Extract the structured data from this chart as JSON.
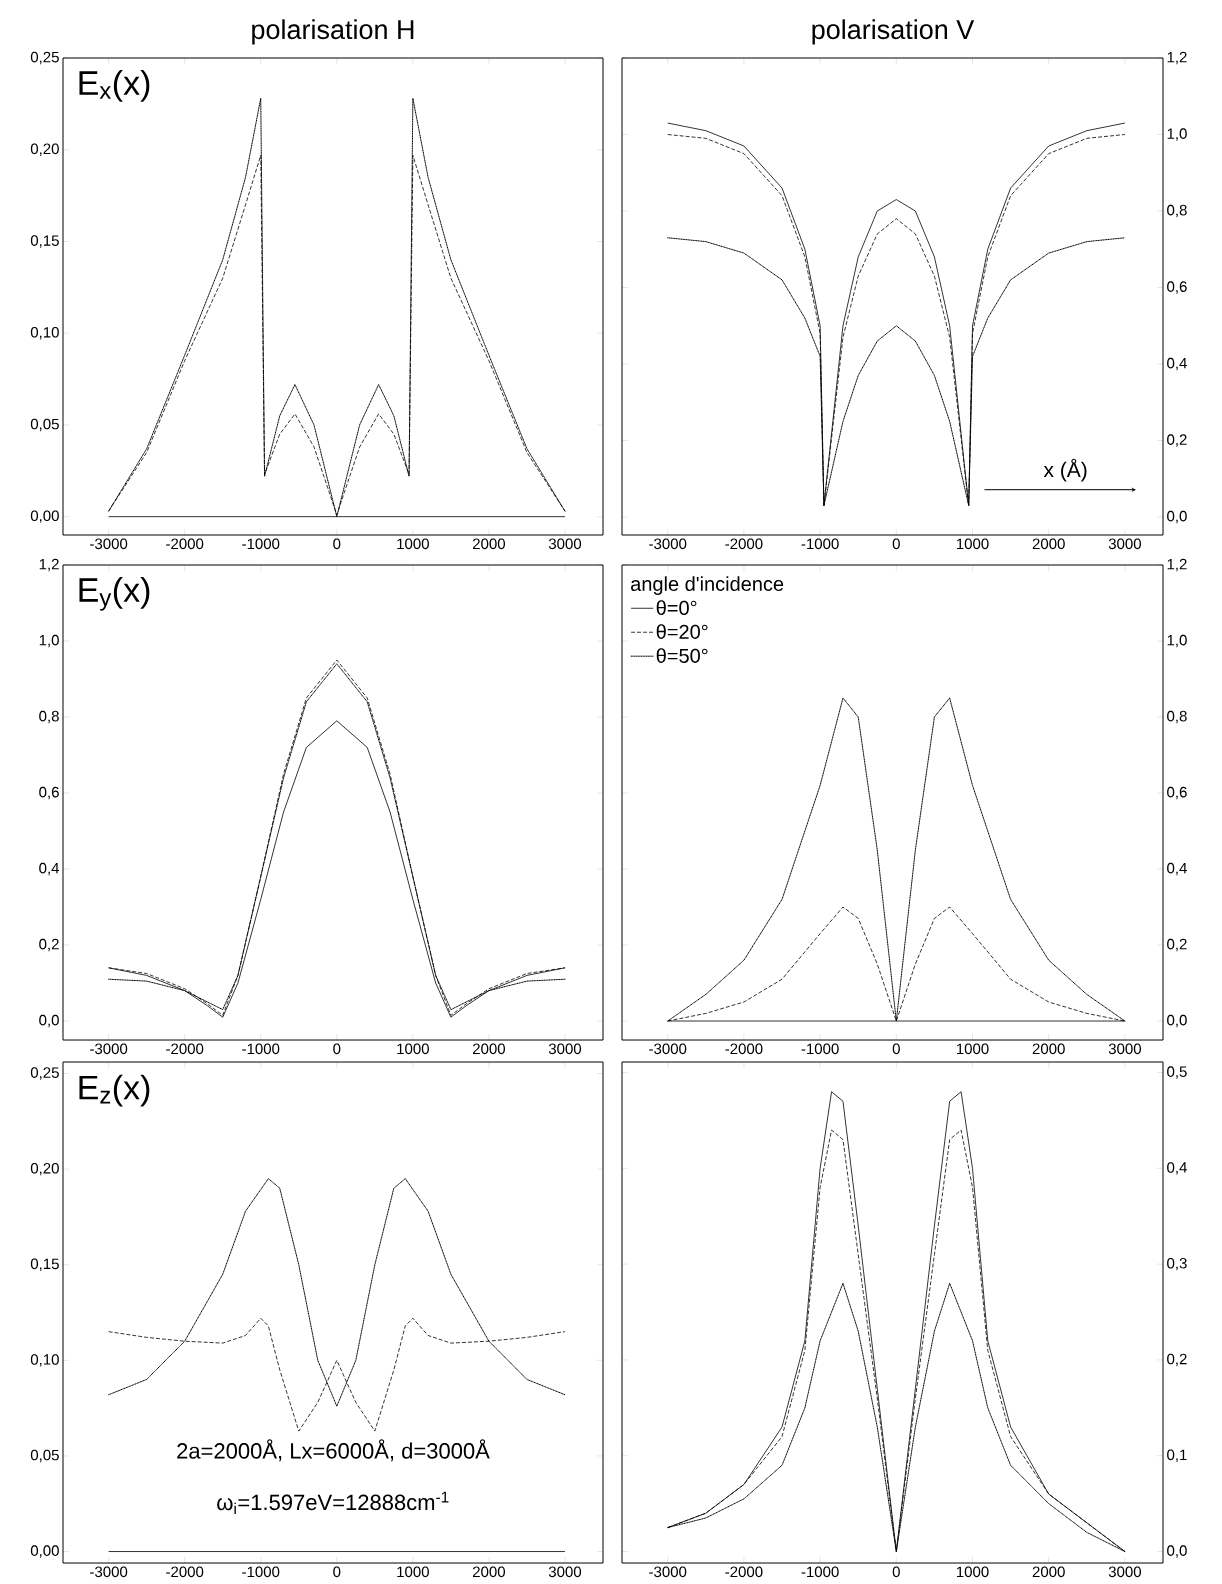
{
  "chart_data": [
    {
      "type": "line",
      "title": "polarisation H",
      "annotations": [
        "E$_{x}$(x)"
      ],
      "xlim": [
        -3600,
        3500
      ],
      "xticks": [
        -3000,
        -2000,
        -1000,
        0,
        1000,
        2000,
        3000
      ],
      "ylim": [
        -0.01,
        0.25
      ],
      "yticks": [
        {
          "value": 0,
          "label": "0,00"
        },
        {
          "value": 0.05,
          "label": "0,05"
        },
        {
          "value": 0.1,
          "label": "0,10"
        },
        {
          "value": 0.15,
          "label": "0,15"
        },
        {
          "value": 0.2,
          "label": "0,20"
        },
        {
          "value": 0.25,
          "label": "0,25"
        }
      ],
      "series": [
        {
          "color": "#000000",
          "line_style": "solid",
          "x": [
            -3000,
            3000
          ],
          "values": [
            0,
            0
          ]
        },
        {
          "color": "#000000",
          "line_style": "dashed",
          "x": [
            -3000,
            -2500,
            -2000,
            -1500,
            -1200,
            -1000,
            -950,
            -750,
            -550,
            -300,
            0,
            300,
            550,
            750,
            950,
            1000,
            1200,
            1500,
            2000,
            2500,
            3000
          ],
          "values": [
            0.003,
            0.035,
            0.085,
            0.13,
            0.17,
            0.197,
            0.023,
            0.045,
            0.056,
            0.038,
            0.001,
            0.038,
            0.056,
            0.045,
            0.023,
            0.197,
            0.17,
            0.13,
            0.085,
            0.035,
            0.003
          ]
        },
        {
          "color": "#000000",
          "line_style": "dotted",
          "x": [
            -3000,
            -2500,
            -2000,
            -1500,
            -1200,
            -1000,
            -950,
            -750,
            -550,
            -300,
            0,
            300,
            550,
            750,
            950,
            1000,
            1200,
            1500,
            2000,
            2500,
            3000
          ],
          "values": [
            0.003,
            0.037,
            0.088,
            0.14,
            0.185,
            0.228,
            0.022,
            0.055,
            0.072,
            0.05,
            0.0,
            0.05,
            0.072,
            0.055,
            0.022,
            0.228,
            0.185,
            0.14,
            0.088,
            0.037,
            0.003
          ]
        }
      ]
    },
    {
      "type": "line",
      "title": "polarisation V",
      "xlabel": "x (Å)",
      "xlim": [
        -3600,
        3500
      ],
      "xticks": [
        -3000,
        -2000,
        -1000,
        0,
        1000,
        2000,
        3000
      ],
      "y2lim": [
        -0.047,
        1.2
      ],
      "y2ticks": [
        {
          "value": 0,
          "label": "0,0"
        },
        {
          "value": 0.2,
          "label": "0,2"
        },
        {
          "value": 0.4,
          "label": "0,4"
        },
        {
          "value": 0.6,
          "label": "0,6"
        },
        {
          "value": 0.8,
          "label": "0,8"
        },
        {
          "value": 1.0,
          "label": "1,0"
        },
        {
          "value": 1.2,
          "label": "1,2"
        }
      ],
      "series": [
        {
          "color": "#000000",
          "line_style": "solid",
          "axis": "y2",
          "x": [
            -3000,
            -2500,
            -2000,
            -1500,
            -1200,
            -1000,
            -950,
            -700,
            -500,
            -250,
            0,
            250,
            500,
            700,
            950,
            1000,
            1200,
            1500,
            2000,
            2500,
            3000
          ],
          "values": [
            1.03,
            1.01,
            0.97,
            0.86,
            0.7,
            0.5,
            0.03,
            0.5,
            0.68,
            0.8,
            0.83,
            0.8,
            0.68,
            0.5,
            0.03,
            0.5,
            0.7,
            0.86,
            0.97,
            1.01,
            1.03
          ]
        },
        {
          "color": "#000000",
          "line_style": "dashed",
          "axis": "y2",
          "x": [
            -3000,
            -2500,
            -2000,
            -1500,
            -1200,
            -1000,
            -950,
            -700,
            -500,
            -250,
            0,
            250,
            500,
            700,
            950,
            1000,
            1200,
            1500,
            2000,
            2500,
            3000
          ],
          "values": [
            1.0,
            0.99,
            0.95,
            0.84,
            0.68,
            0.48,
            0.03,
            0.47,
            0.63,
            0.74,
            0.78,
            0.74,
            0.63,
            0.47,
            0.03,
            0.48,
            0.68,
            0.84,
            0.95,
            0.99,
            1.0
          ]
        },
        {
          "color": "#000000",
          "line_style": "dotted",
          "axis": "y2",
          "x": [
            -3000,
            -2500,
            -2000,
            -1500,
            -1200,
            -1000,
            -950,
            -700,
            -500,
            -250,
            0,
            250,
            500,
            700,
            950,
            1000,
            1200,
            1500,
            2000,
            2500,
            3000
          ],
          "values": [
            0.73,
            0.72,
            0.69,
            0.62,
            0.52,
            0.42,
            0.03,
            0.25,
            0.37,
            0.46,
            0.5,
            0.46,
            0.37,
            0.25,
            0.03,
            0.42,
            0.52,
            0.62,
            0.69,
            0.72,
            0.73
          ]
        }
      ]
    },
    {
      "type": "line",
      "annotations": [
        "E$_{y}$(x)"
      ],
      "xlim": [
        -3600,
        3500
      ],
      "xticks": [
        -3000,
        -2000,
        -1000,
        0,
        1000,
        2000,
        3000
      ],
      "ylim": [
        -0.05,
        1.2
      ],
      "yticks": [
        {
          "value": 0,
          "label": "0,0"
        },
        {
          "value": 0.2,
          "label": "0,2"
        },
        {
          "value": 0.4,
          "label": "0,4"
        },
        {
          "value": 0.6,
          "label": "0,6"
        },
        {
          "value": 0.8,
          "label": "0,8"
        },
        {
          "value": 1.0,
          "label": "1,0"
        },
        {
          "value": 1.2,
          "label": "1,2"
        }
      ],
      "series": [
        {
          "color": "#000000",
          "line_style": "solid",
          "x": [
            -3000,
            -2500,
            -2000,
            -1700,
            -1500,
            -1300,
            -1000,
            -700,
            -400,
            0,
            400,
            700,
            1000,
            1300,
            1500,
            1700,
            2000,
            2500,
            3000
          ],
          "values": [
            0.14,
            0.12,
            0.08,
            0.04,
            0.01,
            0.1,
            0.32,
            0.55,
            0.72,
            0.79,
            0.72,
            0.55,
            0.32,
            0.1,
            0.01,
            0.04,
            0.08,
            0.12,
            0.14
          ]
        },
        {
          "color": "#000000",
          "line_style": "dashed",
          "x": [
            -3000,
            -2500,
            -2000,
            -1700,
            -1500,
            -1300,
            -1000,
            -700,
            -400,
            0,
            400,
            700,
            1000,
            1300,
            1500,
            1700,
            2000,
            2500,
            3000
          ],
          "values": [
            0.14,
            0.125,
            0.085,
            0.045,
            0.015,
            0.12,
            0.38,
            0.65,
            0.85,
            0.95,
            0.85,
            0.65,
            0.38,
            0.12,
            0.015,
            0.045,
            0.085,
            0.125,
            0.14
          ]
        },
        {
          "color": "#000000",
          "line_style": "dotted",
          "x": [
            -3000,
            -2500,
            -2000,
            -1700,
            -1500,
            -1300,
            -1000,
            -700,
            -400,
            0,
            400,
            700,
            1000,
            1300,
            1500,
            1700,
            2000,
            2500,
            3000
          ],
          "values": [
            0.11,
            0.105,
            0.08,
            0.05,
            0.03,
            0.12,
            0.38,
            0.64,
            0.84,
            0.94,
            0.84,
            0.64,
            0.38,
            0.12,
            0.03,
            0.05,
            0.08,
            0.105,
            0.11
          ]
        }
      ]
    },
    {
      "type": "line",
      "legend": "top left",
      "legend_title": "angle d'incidence",
      "xlim": [
        -3600,
        3500
      ],
      "xticks": [
        -3000,
        -2000,
        -1000,
        0,
        1000,
        2000,
        3000
      ],
      "y2lim": [
        -0.05,
        1.2
      ],
      "y2ticks": [
        {
          "value": 0,
          "label": "0,0"
        },
        {
          "value": 0.2,
          "label": "0,2"
        },
        {
          "value": 0.4,
          "label": "0,4"
        },
        {
          "value": 0.6,
          "label": "0,6"
        },
        {
          "value": 0.8,
          "label": "0,8"
        },
        {
          "value": 1.0,
          "label": "1,0"
        },
        {
          "value": 1.2,
          "label": "1,2"
        }
      ],
      "series": [
        {
          "name": "θ=0°",
          "color": "#000000",
          "line_style": "solid",
          "axis": "y2",
          "x": [
            -3000,
            3000
          ],
          "values": [
            0,
            0
          ]
        },
        {
          "name": "θ=20°",
          "color": "#000000",
          "line_style": "dashed",
          "axis": "y2",
          "x": [
            -3000,
            -2500,
            -2000,
            -1500,
            -1000,
            -700,
            -500,
            -250,
            0,
            250,
            500,
            700,
            1000,
            1500,
            2000,
            2500,
            3000
          ],
          "values": [
            0.0,
            0.02,
            0.05,
            0.11,
            0.23,
            0.3,
            0.27,
            0.15,
            0.0,
            0.15,
            0.27,
            0.3,
            0.23,
            0.11,
            0.05,
            0.02,
            0.0
          ]
        },
        {
          "name": "θ=50°",
          "color": "#000000",
          "line_style": "dotted",
          "axis": "y2",
          "x": [
            -3000,
            -2500,
            -2000,
            -1500,
            -1000,
            -700,
            -500,
            -250,
            0,
            250,
            500,
            700,
            1000,
            1500,
            2000,
            2500,
            3000
          ],
          "values": [
            0.0,
            0.07,
            0.16,
            0.32,
            0.62,
            0.85,
            0.8,
            0.45,
            0.0,
            0.45,
            0.8,
            0.85,
            0.62,
            0.32,
            0.16,
            0.07,
            0.0
          ]
        }
      ]
    },
    {
      "type": "line",
      "annotations": [
        "E$_{z}$(x)",
        "2a=2000Å, Lx=6000Å, d=3000Å",
        "ω$_{i}$=1.597eV=12888cm$^{-1}$"
      ],
      "xlim": [
        -3600,
        3500
      ],
      "xticks": [
        -3000,
        -2000,
        -1000,
        0,
        1000,
        2000,
        3000
      ],
      "ylim": [
        -0.006,
        0.256
      ],
      "yticks": [
        {
          "value": 0,
          "label": "0,00"
        },
        {
          "value": 0.05,
          "label": "0,05"
        },
        {
          "value": 0.1,
          "label": "0,10"
        },
        {
          "value": 0.15,
          "label": "0,15"
        },
        {
          "value": 0.2,
          "label": "0,20"
        },
        {
          "value": 0.25,
          "label": "0,25"
        }
      ],
      "series": [
        {
          "color": "#000000",
          "line_style": "solid",
          "x": [
            -3000,
            3000
          ],
          "values": [
            0,
            0
          ]
        },
        {
          "color": "#000000",
          "line_style": "dashed",
          "x": [
            -3000,
            -2500,
            -2000,
            -1500,
            -1200,
            -1000,
            -900,
            -750,
            -500,
            -250,
            0,
            250,
            500,
            750,
            900,
            1000,
            1200,
            1500,
            2000,
            2500,
            3000
          ],
          "values": [
            0.115,
            0.112,
            0.11,
            0.109,
            0.113,
            0.122,
            0.118,
            0.095,
            0.063,
            0.078,
            0.1,
            0.078,
            0.063,
            0.095,
            0.118,
            0.122,
            0.113,
            0.109,
            0.11,
            0.112,
            0.115
          ]
        },
        {
          "color": "#000000",
          "line_style": "dotted",
          "x": [
            -3000,
            -2500,
            -2000,
            -1500,
            -1200,
            -900,
            -750,
            -500,
            -250,
            0,
            250,
            500,
            750,
            900,
            1200,
            1500,
            2000,
            2500,
            3000
          ],
          "values": [
            0.082,
            0.09,
            0.11,
            0.145,
            0.178,
            0.195,
            0.19,
            0.15,
            0.1,
            0.076,
            0.1,
            0.15,
            0.19,
            0.195,
            0.178,
            0.145,
            0.11,
            0.09,
            0.082
          ]
        }
      ]
    },
    {
      "type": "line",
      "xlim": [
        -3600,
        3500
      ],
      "xticks": [
        -3000,
        -2000,
        -1000,
        0,
        1000,
        2000,
        3000
      ],
      "y2lim": [
        -0.012,
        0.511
      ],
      "y2ticks": [
        {
          "value": 0,
          "label": "0,0"
        },
        {
          "value": 0.1,
          "label": "0,1"
        },
        {
          "value": 0.2,
          "label": "0,2"
        },
        {
          "value": 0.3,
          "label": "0,3"
        },
        {
          "value": 0.4,
          "label": "0,4"
        },
        {
          "value": 0.5,
          "label": "0,5"
        }
      ],
      "series": [
        {
          "color": "#000000",
          "line_style": "solid",
          "axis": "y2",
          "x": [
            -3000,
            -2500,
            -2000,
            -1500,
            -1200,
            -1000,
            -850,
            -700,
            -500,
            -250,
            0,
            250,
            500,
            700,
            850,
            1000,
            1200,
            1500,
            2000,
            2500,
            3000
          ],
          "values": [
            0.025,
            0.04,
            0.07,
            0.13,
            0.22,
            0.4,
            0.48,
            0.47,
            0.34,
            0.17,
            0.0,
            0.17,
            0.34,
            0.47,
            0.48,
            0.4,
            0.22,
            0.13,
            0.06,
            0.03,
            0.0
          ]
        },
        {
          "color": "#000000",
          "line_style": "dashed",
          "axis": "y2",
          "x": [
            -3000,
            -2500,
            -2000,
            -1500,
            -1200,
            -1000,
            -850,
            -700,
            -500,
            -250,
            0,
            250,
            500,
            700,
            850,
            1000,
            1200,
            1500,
            2000,
            2500,
            3000
          ],
          "values": [
            0.025,
            0.04,
            0.07,
            0.12,
            0.21,
            0.38,
            0.44,
            0.43,
            0.31,
            0.16,
            0.0,
            0.16,
            0.31,
            0.43,
            0.44,
            0.38,
            0.21,
            0.12,
            0.06,
            0.03,
            0.0
          ]
        },
        {
          "color": "#000000",
          "line_style": "dotted",
          "axis": "y2",
          "x": [
            -3000,
            -2500,
            -2000,
            -1500,
            -1200,
            -1000,
            -700,
            -500,
            -250,
            0,
            250,
            500,
            700,
            1000,
            1200,
            1500,
            2000,
            2500,
            3000
          ],
          "values": [
            0.025,
            0.035,
            0.055,
            0.09,
            0.15,
            0.22,
            0.28,
            0.23,
            0.13,
            0.0,
            0.13,
            0.23,
            0.28,
            0.22,
            0.15,
            0.09,
            0.05,
            0.02,
            0.0
          ]
        }
      ]
    }
  ]
}
